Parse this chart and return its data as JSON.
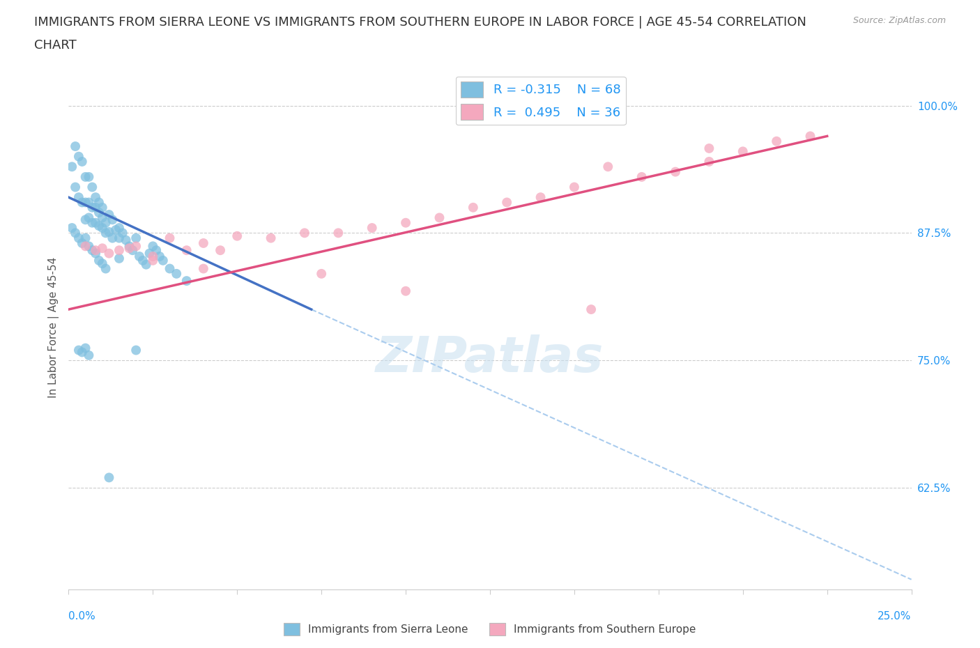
{
  "title_line1": "IMMIGRANTS FROM SIERRA LEONE VS IMMIGRANTS FROM SOUTHERN EUROPE IN LABOR FORCE | AGE 45-54 CORRELATION",
  "title_line2": "CHART",
  "source": "Source: ZipAtlas.com",
  "ylabel": "In Labor Force | Age 45-54",
  "xmin": 0.0,
  "xmax": 0.25,
  "ymin": 0.525,
  "ymax": 1.04,
  "yticks": [
    0.625,
    0.75,
    0.875,
    1.0
  ],
  "ytick_labels": [
    "62.5%",
    "75.0%",
    "87.5%",
    "100.0%"
  ],
  "color_blue": "#7fbfdf",
  "color_blue_line": "#4472c4",
  "color_pink": "#f4a8be",
  "color_pink_line": "#e05080",
  "color_dashed": "#aaccee",
  "blue_x": [
    0.001,
    0.002,
    0.002,
    0.003,
    0.003,
    0.004,
    0.004,
    0.005,
    0.005,
    0.005,
    0.006,
    0.006,
    0.006,
    0.007,
    0.007,
    0.007,
    0.008,
    0.008,
    0.008,
    0.009,
    0.009,
    0.009,
    0.01,
    0.01,
    0.01,
    0.011,
    0.011,
    0.012,
    0.012,
    0.013,
    0.013,
    0.014,
    0.015,
    0.015,
    0.016,
    0.017,
    0.018,
    0.019,
    0.02,
    0.021,
    0.022,
    0.023,
    0.024,
    0.025,
    0.026,
    0.027,
    0.028,
    0.03,
    0.032,
    0.035,
    0.001,
    0.002,
    0.003,
    0.004,
    0.005,
    0.006,
    0.007,
    0.008,
    0.009,
    0.01,
    0.003,
    0.004,
    0.005,
    0.006,
    0.02,
    0.012,
    0.011,
    0.015
  ],
  "blue_y": [
    0.94,
    0.96,
    0.92,
    0.95,
    0.91,
    0.945,
    0.905,
    0.93,
    0.905,
    0.888,
    0.93,
    0.905,
    0.89,
    0.92,
    0.9,
    0.885,
    0.91,
    0.9,
    0.885,
    0.905,
    0.895,
    0.882,
    0.9,
    0.89,
    0.88,
    0.885,
    0.875,
    0.893,
    0.876,
    0.888,
    0.87,
    0.878,
    0.88,
    0.87,
    0.875,
    0.868,
    0.862,
    0.858,
    0.87,
    0.852,
    0.848,
    0.844,
    0.855,
    0.862,
    0.858,
    0.852,
    0.848,
    0.84,
    0.835,
    0.828,
    0.88,
    0.875,
    0.87,
    0.865,
    0.87,
    0.862,
    0.858,
    0.855,
    0.848,
    0.845,
    0.76,
    0.758,
    0.762,
    0.755,
    0.76,
    0.635,
    0.84,
    0.85
  ],
  "pink_x": [
    0.005,
    0.01,
    0.015,
    0.02,
    0.025,
    0.03,
    0.035,
    0.04,
    0.045,
    0.05,
    0.06,
    0.07,
    0.08,
    0.09,
    0.1,
    0.11,
    0.12,
    0.13,
    0.14,
    0.15,
    0.16,
    0.17,
    0.18,
    0.19,
    0.2,
    0.21,
    0.22,
    0.008,
    0.012,
    0.018,
    0.025,
    0.04,
    0.075,
    0.1,
    0.155,
    0.19
  ],
  "pink_y": [
    0.862,
    0.86,
    0.858,
    0.862,
    0.852,
    0.87,
    0.858,
    0.865,
    0.858,
    0.872,
    0.87,
    0.875,
    0.875,
    0.88,
    0.885,
    0.89,
    0.9,
    0.905,
    0.91,
    0.92,
    0.94,
    0.93,
    0.935,
    0.945,
    0.955,
    0.965,
    0.97,
    0.858,
    0.855,
    0.86,
    0.848,
    0.84,
    0.835,
    0.818,
    0.8,
    0.958
  ],
  "blue_line_x": [
    0.0,
    0.072
  ],
  "blue_line_y": [
    0.91,
    0.8
  ],
  "pink_line_x": [
    0.0,
    0.225
  ],
  "pink_line_y": [
    0.8,
    0.97
  ],
  "dash_line_x": [
    0.072,
    0.25
  ],
  "dash_line_y": [
    0.8,
    0.535
  ],
  "watermark_text": "ZIPatlas",
  "title_fontsize": 13,
  "axis_label_fontsize": 11,
  "tick_fontsize": 11,
  "legend_fontsize": 13
}
